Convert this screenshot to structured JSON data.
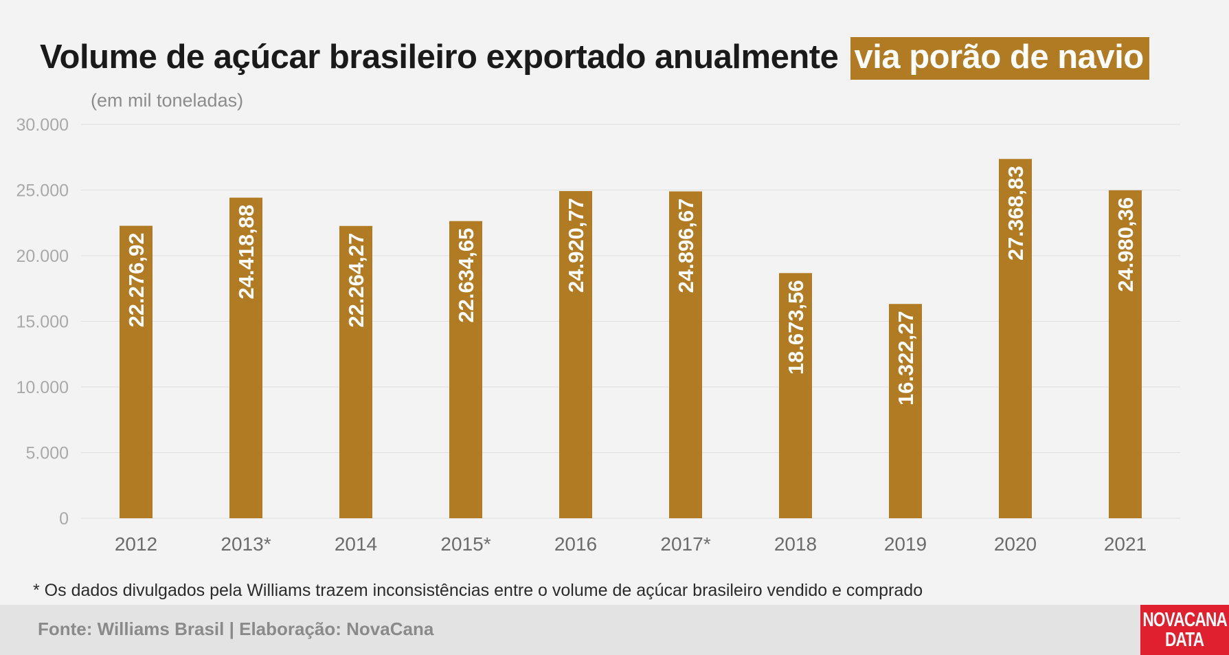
{
  "header": {
    "title_main": "Volume de açúcar brasileiro exportado anualmente",
    "title_highlight": "via porão de navio",
    "subtitle": "(em mil toneladas)"
  },
  "colors": {
    "bar": "#b07b22",
    "highlight": "#b07b22",
    "logo": "#e0202e",
    "background": "#f3f3f3"
  },
  "chart_data": {
    "type": "bar",
    "title": "Volume de açúcar brasileiro exportado anualmente via porão de navio",
    "subtitle": "(em mil toneladas)",
    "categories": [
      "2012",
      "2013*",
      "2014",
      "2015*",
      "2016",
      "2017*",
      "2018",
      "2019",
      "2020",
      "2021"
    ],
    "values": [
      22276.92,
      24418.88,
      22264.27,
      22634.65,
      24920.77,
      24896.67,
      18673.56,
      16322.27,
      27368.83,
      24980.36
    ],
    "value_labels": [
      "22.276,92",
      "24.418,88",
      "22.264,27",
      "22.634,65",
      "24.920,77",
      "24.896,67",
      "18.673,56",
      "16.322,27",
      "27.368,83",
      "24.980,36"
    ],
    "yticks": [
      0,
      5000,
      10000,
      15000,
      20000,
      25000,
      30000
    ],
    "ytick_labels": [
      "0",
      "5.000",
      "10.000",
      "15.000",
      "20.000",
      "25.000",
      "30.000"
    ],
    "ylim": [
      0,
      30000
    ],
    "grid": true,
    "legend": "none"
  },
  "note": "* Os dados divulgados pela Williams trazem inconsistências entre o volume de açúcar brasileiro vendido e comprado",
  "footer": {
    "source": "Fonte: Williams Brasil | Elaboração: NovaCana",
    "logo_line1": "NOVACANA",
    "logo_line2": "DATA"
  }
}
